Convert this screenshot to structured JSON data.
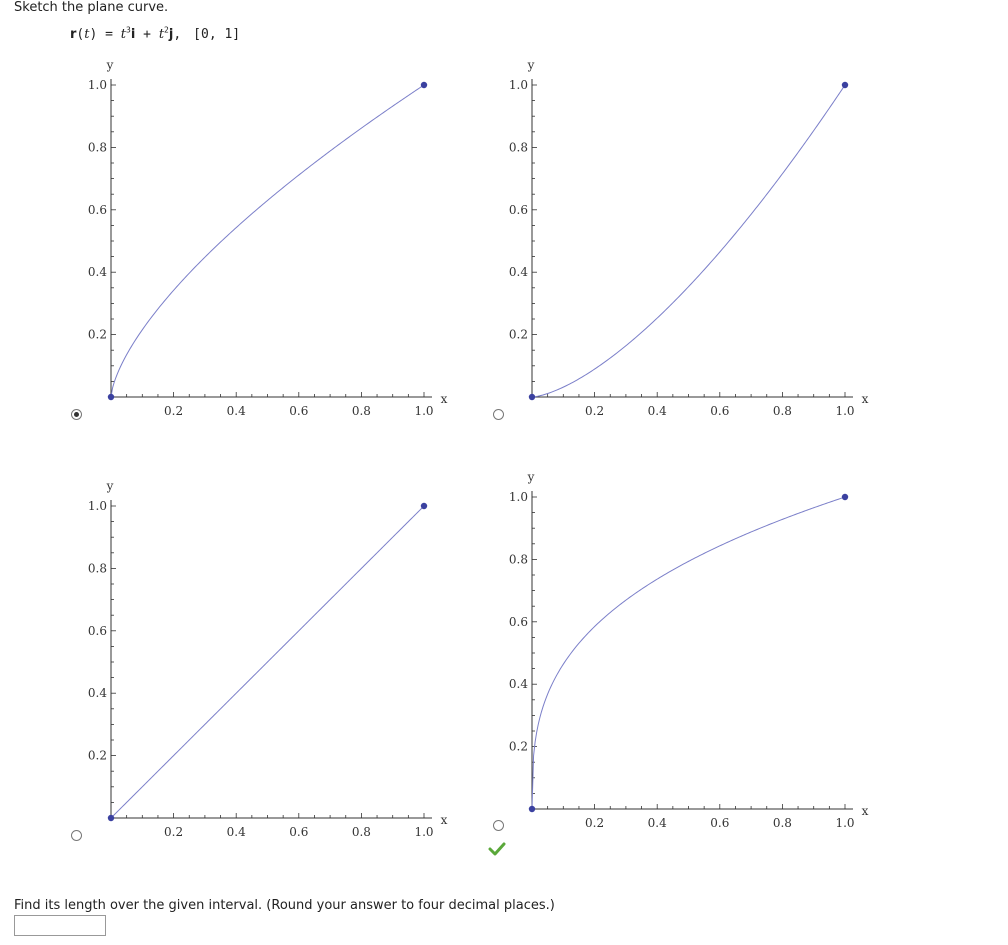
{
  "question": {
    "prompt": "Sketch the plane curve.",
    "formula": {
      "lhs_func": "r",
      "lhs_var": "t",
      "equals": " = ",
      "term1_var": "t",
      "term1_exp": "3",
      "term1_unit": "i",
      "plus": " + ",
      "term2_var": "t",
      "term2_exp": "2",
      "term2_unit": "j",
      "comma": ",",
      "interval": "[0, 1]"
    },
    "length_prompt": "Find its length over the given interval. (Round your answer to four decimal places.)",
    "answer_value": ""
  },
  "choices": [
    {
      "id": "a",
      "selected": true,
      "correct": false
    },
    {
      "id": "b",
      "selected": false,
      "correct": false
    },
    {
      "id": "c",
      "selected": false,
      "correct": false
    },
    {
      "id": "d",
      "selected": false,
      "correct": true
    }
  ],
  "colors": {
    "curve": "#7b7fc9",
    "endpoint": "#3b41a0",
    "axis": "#333333",
    "check": "#5aa83a"
  },
  "check_icon": "check-icon",
  "chart_data": [
    {
      "type": "line",
      "xlabel": "x",
      "ylabel": "y",
      "xlim": [
        0,
        1
      ],
      "ylim": [
        0,
        1
      ],
      "xticks": [
        "0.2",
        "0.4",
        "0.6",
        "0.8",
        "1.0"
      ],
      "yticks": [
        "0.2",
        "0.4",
        "0.6",
        "0.8",
        "1.0"
      ],
      "curve": "y = x^(2/3)",
      "endpoints": [
        [
          0,
          0
        ],
        [
          1,
          1
        ]
      ]
    },
    {
      "type": "line",
      "xlabel": "x",
      "ylabel": "y",
      "xlim": [
        0,
        1
      ],
      "ylim": [
        0,
        1
      ],
      "xticks": [
        "0.2",
        "0.4",
        "0.6",
        "0.8",
        "1.0"
      ],
      "yticks": [
        "0.2",
        "0.4",
        "0.6",
        "0.8",
        "1.0"
      ],
      "curve": "y = x^(3/2)",
      "endpoints": [
        [
          0,
          0
        ],
        [
          1,
          1
        ]
      ]
    },
    {
      "type": "line",
      "xlabel": "x",
      "ylabel": "y",
      "xlim": [
        0,
        1
      ],
      "ylim": [
        0,
        1
      ],
      "xticks": [
        "0.2",
        "0.4",
        "0.6",
        "0.8",
        "1.0"
      ],
      "yticks": [
        "0.2",
        "0.4",
        "0.6",
        "0.8",
        "1.0"
      ],
      "curve": "y = x",
      "endpoints": [
        [
          0,
          0
        ],
        [
          1,
          1
        ]
      ]
    },
    {
      "type": "line",
      "xlabel": "x",
      "ylabel": "y",
      "xlim": [
        0,
        1
      ],
      "ylim": [
        0,
        1
      ],
      "xticks": [
        "0.2",
        "0.4",
        "0.6",
        "0.8",
        "1.0"
      ],
      "yticks": [
        "0.2",
        "0.4",
        "0.6",
        "0.8",
        "1.0"
      ],
      "curve": "y = x^(1/3)",
      "endpoints": [
        [
          0,
          0
        ],
        [
          1,
          1
        ]
      ]
    }
  ]
}
